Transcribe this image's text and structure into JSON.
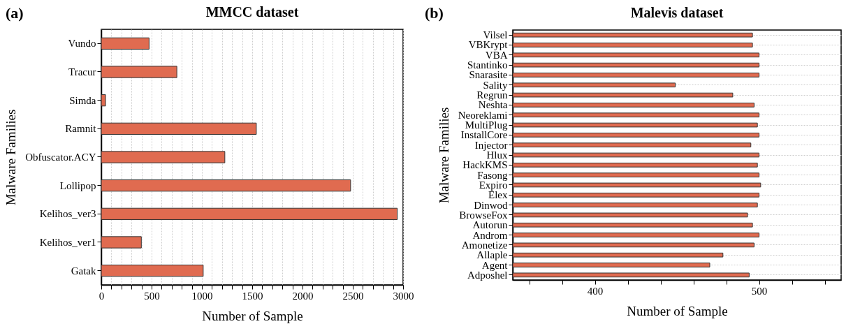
{
  "chart_data": [
    {
      "type": "bar",
      "orientation": "horizontal",
      "title": "MMCC dataset",
      "xlabel": "Number of Sample",
      "ylabel": "Malware Families",
      "annotations": [
        "(a)"
      ],
      "categories": [
        "Vundo",
        "Tracur",
        "Simda",
        "Ramnit",
        "Obfuscator.ACY",
        "Lollipop",
        "Kelihos_ver3",
        "Kelihos_ver1",
        "Gatak"
      ],
      "values": [
        475,
        751,
        42,
        1541,
        1228,
        2478,
        2942,
        398,
        1013
      ],
      "color": "#e06b50",
      "xlim": [
        0,
        3000
      ],
      "xticks": [
        0,
        {
          "value": 100,
          "label": null
        },
        {
          "value": 200,
          "label": null
        },
        {
          "value": 300,
          "label": null
        },
        {
          "value": 400,
          "label": null
        },
        500,
        {
          "value": 600,
          "label": null
        },
        {
          "value": 700,
          "label": null
        },
        {
          "value": 800,
          "label": null
        },
        {
          "value": 900,
          "label": null
        },
        1000,
        {
          "value": 1100,
          "label": null
        },
        {
          "value": 1200,
          "label": null
        },
        {
          "value": 1300,
          "label": null
        },
        {
          "value": 1400,
          "label": null
        },
        1500,
        {
          "value": 1600,
          "label": null
        },
        {
          "value": 1700,
          "label": null
        },
        {
          "value": 1800,
          "label": null
        },
        {
          "value": 1900,
          "label": null
        },
        2000,
        {
          "value": 2100,
          "label": null
        },
        {
          "value": 2200,
          "label": null
        },
        {
          "value": 2300,
          "label": null
        },
        {
          "value": 2400,
          "label": null
        },
        2500,
        {
          "value": 2600,
          "label": null
        },
        {
          "value": 2700,
          "label": null
        },
        {
          "value": 2800,
          "label": null
        },
        {
          "value": 2900,
          "label": null
        },
        3000
      ],
      "grid": "x"
    },
    {
      "type": "bar",
      "orientation": "horizontal",
      "title": "Malevis dataset",
      "xlabel": "Number of Sample",
      "ylabel": "Malware Families",
      "annotations": [
        "(b)"
      ],
      "categories": [
        "Vilsel",
        "VBKrypt",
        "VBA",
        "Stantinko",
        "Snarasite",
        "Sality",
        "Regrun",
        "Neshta",
        "Neoreklami",
        "MultiPlug",
        "InstallCore",
        "Injector",
        "Hlux",
        "HackKMS",
        "Fasong",
        "Expiro",
        "Elex",
        "Dinwod",
        "BrowseFox",
        "Autorun",
        "Androm",
        "Amonetize",
        "Allaple",
        "Agent",
        "Adposhel"
      ],
      "values": [
        496,
        496,
        500,
        500,
        500,
        449,
        484,
        497,
        500,
        499,
        500,
        495,
        500,
        499,
        500,
        501,
        500,
        499,
        493,
        496,
        500,
        497,
        478,
        470,
        494
      ],
      "color": "#e06b50",
      "xlim": [
        350,
        550
      ],
      "xticks": [
        {
          "value": 360,
          "label": null
        },
        {
          "value": 380,
          "label": null
        },
        400,
        {
          "value": 420,
          "label": null
        },
        {
          "value": 440,
          "label": null
        },
        {
          "value": 460,
          "label": null
        },
        {
          "value": 480,
          "label": null
        },
        500,
        {
          "value": 520,
          "label": null
        },
        {
          "value": 540,
          "label": null
        }
      ],
      "grid": "y"
    }
  ]
}
